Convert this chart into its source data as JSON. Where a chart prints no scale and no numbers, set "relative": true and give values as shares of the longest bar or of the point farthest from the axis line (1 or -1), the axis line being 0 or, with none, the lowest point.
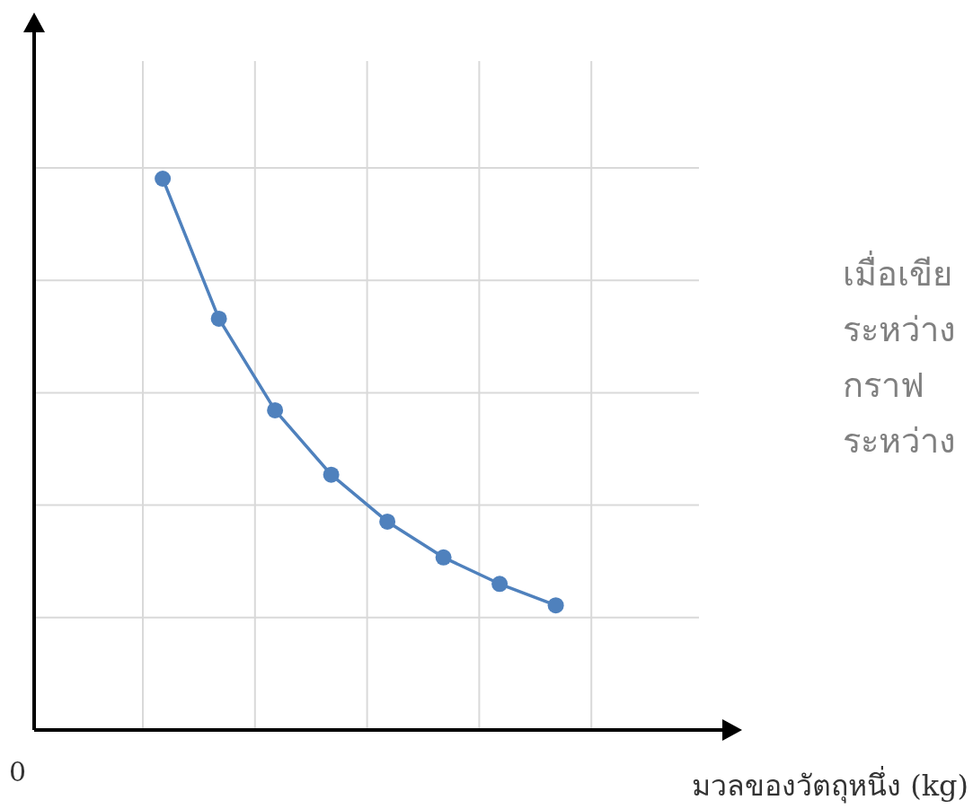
{
  "chart_data": {
    "type": "line",
    "relative": true,
    "xlabel": "มวลของวัตถุหนึ่ง (kg)",
    "categories": [
      null,
      null,
      null,
      null,
      null,
      null,
      null,
      null
    ],
    "series": [
      {
        "color": "#4f81bd",
        "values": [
          1,
          0.746,
          0.58,
          0.463,
          0.378,
          0.313,
          0.265,
          0.226
        ]
      }
    ],
    "marker": "circle",
    "line_style": "solid",
    "grid": true,
    "annotations": [
      "0",
      "เมื่อเขีย",
      "ระหว่าง",
      "กราฟ",
      "ระหว่าง"
    ]
  }
}
